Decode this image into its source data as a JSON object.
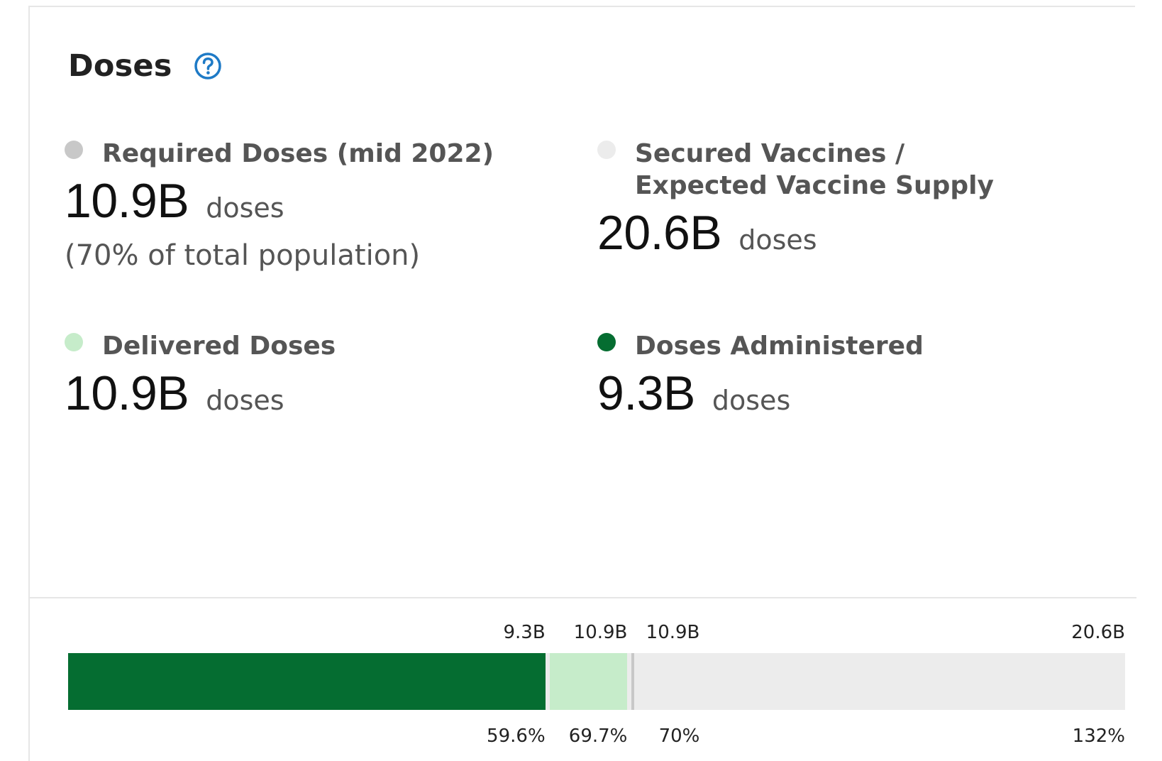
{
  "card": {
    "title": "Doses",
    "help_icon": "question-circle-icon",
    "accent_color": "#1e7ac6"
  },
  "stats": {
    "required": {
      "label": "Required Doses (mid 2022)",
      "value": "10.9B",
      "unit": "doses",
      "note": "(70% of total population)",
      "color": "#c8c8c8"
    },
    "secured": {
      "label": "Secured Vaccines / Expected Vaccine Supply",
      "value": "20.6B",
      "unit": "doses",
      "color": "#ececec"
    },
    "delivered": {
      "label": "Delivered Doses",
      "value": "10.9B",
      "unit": "doses",
      "color": "#c6ecca"
    },
    "administered": {
      "label": "Doses Administered",
      "value": "9.3B",
      "unit": "doses",
      "color": "#056d31"
    }
  },
  "progress_bar": {
    "max": 20.6,
    "segments": [
      {
        "name": "Doses Administered",
        "value": 9.3,
        "top_label": "9.3B",
        "bottom_label": "59.6%",
        "color": "#056d31"
      },
      {
        "name": "Delivered Doses",
        "value": 10.9,
        "top_label": "10.9B",
        "bottom_label": "69.7%",
        "color": "#c6ecca"
      },
      {
        "name": "Required Doses (mid 2022)",
        "value": 10.9,
        "top_label": "10.9B",
        "bottom_label": "70%",
        "color": "#c8c8c8"
      },
      {
        "name": "Secured Vaccines / Expected Vaccine Supply",
        "value": 20.6,
        "top_label": "20.6B",
        "bottom_label": "132%",
        "color": "#ececec"
      }
    ]
  }
}
